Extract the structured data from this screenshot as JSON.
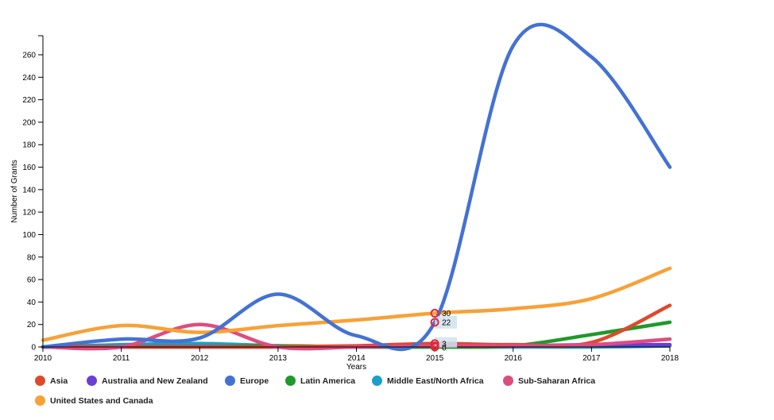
{
  "chart_data": {
    "type": "line",
    "title": "",
    "xlabel": "Years",
    "ylabel": "Number of Grants",
    "x": [
      2010,
      2011,
      2012,
      2013,
      2014,
      2015,
      2016,
      2017,
      2018
    ],
    "xlim": [
      2010,
      2018
    ],
    "ylim": [
      0,
      275
    ],
    "yticks": [
      0,
      20,
      40,
      60,
      80,
      100,
      120,
      140,
      160,
      180,
      200,
      220,
      240,
      260
    ],
    "xtick_labels": [
      "2010",
      "2011",
      "2012",
      "2013",
      "2014",
      "2015",
      "2016",
      "2017",
      "2018"
    ],
    "ytick_labels": [
      "0",
      "20",
      "40",
      "60",
      "80",
      "100",
      "120",
      "140",
      "160",
      "180",
      "200",
      "220",
      "240",
      "260"
    ],
    "grid": false,
    "legend_position": "bottom-left",
    "series": [
      {
        "name": "Asia",
        "color": "#dc4a2e",
        "values": [
          0,
          0,
          0,
          0,
          1,
          3,
          2,
          4,
          37
        ]
      },
      {
        "name": "Australia and New Zealand",
        "color": "#6a3fd1",
        "values": [
          0,
          0,
          0,
          0,
          0,
          1,
          1,
          2,
          2
        ]
      },
      {
        "name": "Europe",
        "color": "#4472d3",
        "values": [
          0,
          7,
          8,
          47,
          10,
          22,
          268,
          258,
          160
        ]
      },
      {
        "name": "Latin America",
        "color": "#1e9a28",
        "values": [
          0,
          0,
          0,
          1,
          0,
          0,
          1,
          11,
          22
        ]
      },
      {
        "name": "Middle East/North Africa",
        "color": "#1b9fc9",
        "values": [
          0,
          2,
          3,
          1,
          0,
          0,
          0,
          0,
          1
        ]
      },
      {
        "name": "Sub-Saharan Africa",
        "color": "#de4d80",
        "values": [
          0,
          0,
          20,
          0,
          0,
          1,
          1,
          2,
          7
        ]
      },
      {
        "name": "United States and Canada",
        "color": "#f7a136",
        "values": [
          6,
          19,
          13,
          19,
          24,
          30,
          34,
          43,
          70
        ]
      }
    ],
    "hover": {
      "x": 2015,
      "labels": [
        {
          "value": 30,
          "text": "30",
          "series": "United States and Canada"
        },
        {
          "value": 22,
          "text": "22",
          "series": "Europe"
        },
        {
          "value": 3,
          "text": "3",
          "series": "Asia"
        },
        {
          "value": 0,
          "text": "0",
          "series": "Latin America"
        }
      ]
    }
  }
}
